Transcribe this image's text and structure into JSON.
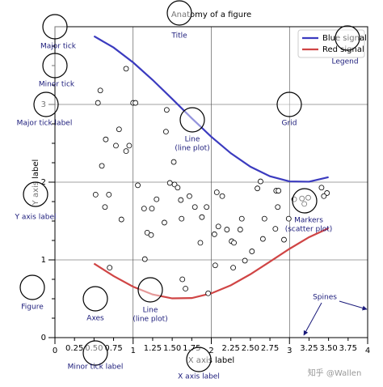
{
  "chart_data": {
    "type": "line",
    "title": "Anatomy of a figure",
    "x_label": "X axis label",
    "y_label": "Y axis label",
    "x": [
      0.5,
      0.75,
      1.0,
      1.25,
      1.5,
      1.75,
      2.0,
      2.25,
      2.5,
      2.75,
      3.0,
      3.25,
      3.5
    ],
    "series": [
      {
        "name": "Blue signal",
        "color": "#3b3bbf",
        "values": [
          3.878,
          3.732,
          3.54,
          3.315,
          3.071,
          2.822,
          2.584,
          2.372,
          2.199,
          2.076,
          2.01,
          2.006,
          2.064
        ]
      },
      {
        "name": "Red signal",
        "color": "#d04545",
        "values": [
          0.952,
          0.792,
          0.655,
          0.555,
          0.505,
          0.509,
          0.569,
          0.673,
          0.815,
          0.977,
          1.142,
          1.292,
          1.407
        ]
      }
    ],
    "scatter_x": [
      0.58,
      0.55,
      0.91,
      1.0,
      1.03,
      0.65,
      0.82,
      0.78,
      0.91,
      0.95,
      0.6,
      0.52,
      0.69,
      0.64,
      0.85,
      1.06,
      1.14,
      1.24,
      1.18,
      1.23,
      1.15,
      1.43,
      1.42,
      1.52,
      1.47,
      1.53,
      1.57,
      1.4,
      1.3,
      1.61,
      1.72,
      1.62,
      1.79,
      1.88,
      1.86,
      1.63,
      1.67,
      1.96,
      1.94,
      2.07,
      2.14,
      2.04,
      2.09,
      2.2,
      2.26,
      2.29,
      2.37,
      2.39,
      2.05,
      2.28,
      2.43,
      2.59,
      2.63,
      2.68,
      2.66,
      2.52,
      2.83,
      2.86,
      2.85,
      2.82,
      2.99,
      2.93,
      3.06,
      3.16,
      3.24,
      3.19,
      3.41,
      3.48,
      3.44,
      0.7
    ],
    "scatter_y": [
      3.18,
      3.02,
      3.46,
      3.02,
      3.02,
      2.55,
      2.68,
      2.47,
      2.4,
      2.47,
      2.21,
      1.84,
      1.84,
      1.68,
      1.52,
      1.96,
      1.66,
      1.66,
      1.35,
      1.32,
      1.01,
      2.93,
      2.65,
      2.26,
      1.99,
      1.97,
      1.93,
      1.48,
      1.78,
      1.77,
      1.82,
      1.53,
      1.68,
      1.55,
      1.22,
      0.75,
      0.63,
      0.57,
      1.68,
      1.87,
      1.82,
      1.33,
      1.43,
      1.39,
      1.24,
      1.22,
      1.39,
      1.53,
      0.93,
      0.9,
      0.99,
      1.92,
      2.01,
      1.53,
      1.27,
      1.11,
      1.89,
      1.89,
      1.68,
      1.4,
      1.53,
      1.26,
      1.78,
      1.79,
      1.8,
      1.72,
      1.93,
      1.86,
      1.82,
      0.9
    ],
    "xlim": [
      0,
      4
    ],
    "ylim": [
      0,
      4
    ],
    "xticks": [
      0,
      1,
      2,
      3,
      4
    ],
    "xminorticks": [
      0.25,
      {
        "value": 0.5,
        "label": "0.50"
      },
      0.75,
      1.25,
      {
        "value": 1.5,
        "label": "1.50"
      },
      1.75,
      2.25,
      {
        "value": 2.5,
        "label": "2.50"
      },
      2.75,
      3.25,
      {
        "value": 3.5,
        "label": "3.50"
      },
      3.75
    ],
    "yticks": [
      0,
      1,
      2,
      3
    ],
    "yminorticks": [
      0.25,
      0.5,
      0.75,
      1.25,
      1.5,
      1.75,
      2.25,
      2.5,
      2.75,
      3.25,
      3.5,
      3.75
    ],
    "grid": true,
    "legend": "upper right"
  },
  "annotations": [
    {
      "lines": [
        "Major tick"
      ]
    },
    {
      "lines": [
        "Minor tick"
      ]
    },
    {
      "lines": [
        "Major tick label"
      ]
    },
    {
      "lines": [
        "Y axis label"
      ]
    },
    {
      "lines": [
        "Title"
      ]
    },
    {
      "lines": [
        "Line",
        "(line plot)"
      ]
    },
    {
      "lines": [
        "Grid"
      ]
    },
    {
      "lines": [
        "Markers",
        "(scatter plot)"
      ]
    },
    {
      "lines": [
        "Legend"
      ]
    },
    {
      "lines": [
        "Figure"
      ]
    },
    {
      "lines": [
        "Axes"
      ]
    },
    {
      "lines": [
        "Line",
        "(line plot)"
      ]
    },
    {
      "lines": [
        "Spines"
      ]
    },
    {
      "lines": [
        "Minor tick label"
      ]
    },
    {
      "lines": [
        "X axis label"
      ]
    }
  ],
  "watermark": "知乎 @Wallen"
}
